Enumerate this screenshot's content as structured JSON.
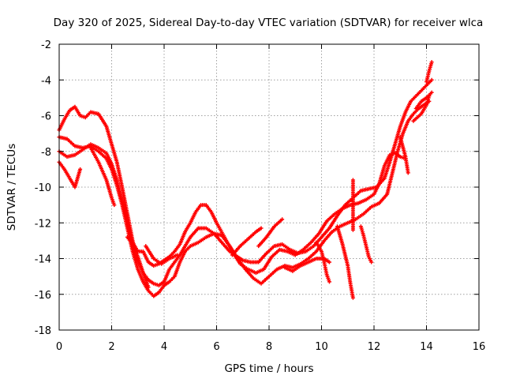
{
  "chart_data": {
    "type": "scatter",
    "title": "Day 320 of 2025, Sidereal Day-to-day VTEC variation (SDTVAR) for receiver wlca",
    "xlabel": "GPS time / hours",
    "ylabel": "SDTVAR / TECUs",
    "xlim": [
      0,
      16
    ],
    "ylim": [
      -18,
      -2
    ],
    "xticks": [
      0,
      2,
      4,
      6,
      8,
      10,
      12,
      14,
      16
    ],
    "yticks": [
      -18,
      -16,
      -14,
      -12,
      -10,
      -8,
      -6,
      -4,
      -2
    ],
    "grid": true,
    "marker": "plus",
    "color": "#ff0000",
    "series": [
      {
        "points": [
          [
            0.0,
            -6.8
          ],
          [
            0.2,
            -6.2
          ],
          [
            0.4,
            -5.7
          ],
          [
            0.6,
            -5.5
          ],
          [
            0.8,
            -6.0
          ],
          [
            1.0,
            -6.1
          ],
          [
            1.2,
            -5.8
          ],
          [
            1.5,
            -5.9
          ],
          [
            1.8,
            -6.6
          ],
          [
            2.0,
            -7.6
          ],
          [
            2.2,
            -8.6
          ],
          [
            2.4,
            -10.0
          ],
          [
            2.6,
            -11.5
          ],
          [
            2.8,
            -13.0
          ],
          [
            3.0,
            -14.1
          ],
          [
            3.2,
            -14.8
          ],
          [
            3.4,
            -15.2
          ],
          [
            3.6,
            -15.4
          ],
          [
            3.8,
            -15.5
          ],
          [
            4.0,
            -15.3
          ],
          [
            4.2,
            -14.6
          ],
          [
            4.4,
            -14.2
          ],
          [
            4.6,
            -13.8
          ],
          [
            4.8,
            -13.3
          ],
          [
            5.0,
            -12.8
          ],
          [
            5.3,
            -12.3
          ],
          [
            5.6,
            -12.3
          ],
          [
            5.9,
            -12.6
          ],
          [
            6.2,
            -13.1
          ],
          [
            6.5,
            -13.6
          ],
          [
            6.8,
            -13.9
          ],
          [
            7.0,
            -14.1
          ],
          [
            7.3,
            -14.2
          ],
          [
            7.6,
            -14.2
          ],
          [
            7.9,
            -13.7
          ],
          [
            8.2,
            -13.3
          ],
          [
            8.5,
            -13.2
          ],
          [
            8.8,
            -13.5
          ],
          [
            9.1,
            -13.7
          ],
          [
            9.4,
            -13.6
          ],
          [
            9.7,
            -13.3
          ],
          [
            10.0,
            -12.8
          ],
          [
            10.3,
            -12.3
          ],
          [
            10.6,
            -11.6
          ],
          [
            10.9,
            -11.0
          ],
          [
            11.2,
            -10.6
          ],
          [
            11.5,
            -10.2
          ],
          [
            11.8,
            -10.1
          ],
          [
            12.1,
            -10.0
          ],
          [
            12.4,
            -9.5
          ],
          [
            12.6,
            -8.6
          ],
          [
            12.8,
            -7.6
          ],
          [
            13.0,
            -6.6
          ],
          [
            13.2,
            -5.8
          ],
          [
            13.4,
            -5.2
          ],
          [
            13.6,
            -4.9
          ],
          [
            13.8,
            -4.6
          ],
          [
            14.0,
            -4.3
          ],
          [
            14.2,
            -4.0
          ]
        ]
      },
      {
        "points": [
          [
            0.0,
            -7.2
          ],
          [
            0.3,
            -7.3
          ],
          [
            0.6,
            -7.7
          ],
          [
            0.9,
            -7.8
          ],
          [
            1.2,
            -7.7
          ],
          [
            1.5,
            -8.0
          ],
          [
            1.8,
            -8.4
          ],
          [
            2.0,
            -9.0
          ],
          [
            2.2,
            -9.9
          ],
          [
            2.4,
            -11.0
          ],
          [
            2.6,
            -12.3
          ],
          [
            2.8,
            -13.6
          ],
          [
            3.0,
            -14.6
          ],
          [
            3.2,
            -15.3
          ],
          [
            3.4,
            -15.8
          ],
          [
            3.6,
            -16.1
          ],
          [
            3.8,
            -15.9
          ],
          [
            4.0,
            -15.5
          ],
          [
            4.2,
            -15.3
          ],
          [
            4.4,
            -15.0
          ],
          [
            4.6,
            -14.2
          ],
          [
            4.8,
            -13.6
          ],
          [
            5.0,
            -13.3
          ],
          [
            5.3,
            -13.1
          ],
          [
            5.6,
            -12.8
          ],
          [
            5.9,
            -12.6
          ],
          [
            6.2,
            -12.7
          ],
          [
            6.5,
            -13.3
          ],
          [
            6.8,
            -14.0
          ],
          [
            7.1,
            -14.6
          ],
          [
            7.4,
            -15.1
          ],
          [
            7.7,
            -15.4
          ],
          [
            8.0,
            -15.0
          ],
          [
            8.3,
            -14.6
          ],
          [
            8.6,
            -14.4
          ],
          [
            8.9,
            -14.5
          ],
          [
            9.2,
            -14.3
          ],
          [
            9.5,
            -14.0
          ],
          [
            9.8,
            -13.6
          ],
          [
            10.1,
            -13.0
          ],
          [
            10.4,
            -12.5
          ],
          [
            10.7,
            -12.2
          ],
          [
            11.0,
            -12.0
          ],
          [
            11.3,
            -11.8
          ],
          [
            11.6,
            -11.5
          ],
          [
            11.9,
            -11.1
          ],
          [
            12.2,
            -10.9
          ],
          [
            12.5,
            -10.4
          ],
          [
            12.7,
            -9.2
          ],
          [
            12.9,
            -8.0
          ],
          [
            13.1,
            -7.0
          ],
          [
            13.3,
            -6.3
          ],
          [
            13.5,
            -5.9
          ],
          [
            13.7,
            -5.6
          ],
          [
            13.9,
            -5.4
          ],
          [
            14.1,
            -5.2
          ]
        ]
      },
      {
        "points": [
          [
            0.0,
            -8.0
          ],
          [
            0.3,
            -8.3
          ],
          [
            0.6,
            -8.2
          ],
          [
            0.9,
            -7.9
          ],
          [
            1.2,
            -7.6
          ],
          [
            1.5,
            -7.8
          ],
          [
            1.8,
            -8.1
          ],
          [
            2.0,
            -8.7
          ],
          [
            2.2,
            -9.6
          ],
          [
            2.4,
            -10.8
          ],
          [
            2.6,
            -12.0
          ],
          [
            2.8,
            -13.1
          ],
          [
            3.0,
            -13.6
          ],
          [
            3.2,
            -13.6
          ],
          [
            3.4,
            -14.2
          ],
          [
            3.6,
            -14.4
          ],
          [
            3.8,
            -14.3
          ],
          [
            4.0,
            -14.1
          ],
          [
            4.2,
            -13.9
          ],
          [
            4.4,
            -13.6
          ],
          [
            4.6,
            -13.2
          ],
          [
            4.8,
            -12.5
          ],
          [
            5.0,
            -12.0
          ],
          [
            5.2,
            -11.4
          ],
          [
            5.4,
            -11.0
          ],
          [
            5.6,
            -11.0
          ],
          [
            5.8,
            -11.4
          ],
          [
            6.0,
            -12.0
          ],
          [
            6.3,
            -12.8
          ],
          [
            6.6,
            -13.6
          ],
          [
            6.9,
            -14.3
          ],
          [
            7.2,
            -14.6
          ],
          [
            7.5,
            -14.8
          ],
          [
            7.8,
            -14.6
          ],
          [
            8.1,
            -13.9
          ],
          [
            8.4,
            -13.5
          ],
          [
            8.7,
            -13.6
          ],
          [
            9.0,
            -13.8
          ],
          [
            9.3,
            -13.5
          ],
          [
            9.6,
            -13.1
          ],
          [
            9.9,
            -12.6
          ],
          [
            10.2,
            -11.9
          ],
          [
            10.5,
            -11.5
          ],
          [
            10.8,
            -11.2
          ],
          [
            11.1,
            -11.0
          ],
          [
            11.4,
            -10.9
          ],
          [
            11.7,
            -10.7
          ],
          [
            12.0,
            -10.4
          ],
          [
            12.2,
            -9.8
          ],
          [
            12.4,
            -8.8
          ],
          [
            12.6,
            -8.2
          ],
          [
            12.8,
            -8.1
          ],
          [
            13.0,
            -8.3
          ],
          [
            13.2,
            -8.4
          ]
        ]
      },
      {
        "points": [
          [
            0.0,
            -8.6
          ],
          [
            0.2,
            -9.0
          ],
          [
            0.4,
            -9.5
          ],
          [
            0.6,
            -10.0
          ],
          [
            0.8,
            -9.0
          ]
        ]
      },
      {
        "points": [
          [
            1.2,
            -7.8
          ],
          [
            1.5,
            -8.6
          ],
          [
            1.8,
            -9.6
          ],
          [
            2.0,
            -10.6
          ],
          [
            2.1,
            -11.0
          ]
        ]
      },
      {
        "points": [
          [
            2.6,
            -12.8
          ],
          [
            2.8,
            -13.2
          ],
          [
            3.0,
            -13.9
          ],
          [
            3.2,
            -14.8
          ],
          [
            3.4,
            -15.6
          ]
        ]
      },
      {
        "points": [
          [
            3.3,
            -13.3
          ],
          [
            3.6,
            -14.0
          ],
          [
            3.9,
            -14.3
          ],
          [
            4.2,
            -14.0
          ],
          [
            4.5,
            -13.8
          ]
        ]
      },
      {
        "points": [
          [
            6.6,
            -13.8
          ],
          [
            6.9,
            -13.3
          ],
          [
            7.2,
            -12.9
          ],
          [
            7.5,
            -12.5
          ],
          [
            7.7,
            -12.3
          ]
        ]
      },
      {
        "points": [
          [
            7.6,
            -13.3
          ],
          [
            7.9,
            -12.8
          ],
          [
            8.2,
            -12.2
          ],
          [
            8.5,
            -11.8
          ]
        ]
      },
      {
        "points": [
          [
            8.6,
            -14.5
          ],
          [
            8.9,
            -14.7
          ],
          [
            9.2,
            -14.4
          ],
          [
            9.5,
            -14.2
          ],
          [
            9.8,
            -14.0
          ],
          [
            10.1,
            -14.0
          ],
          [
            10.3,
            -14.2
          ]
        ]
      },
      {
        "points": [
          [
            9.8,
            -13.1
          ],
          [
            10.0,
            -13.6
          ],
          [
            10.1,
            -14.2
          ],
          [
            10.2,
            -14.9
          ],
          [
            10.3,
            -15.3
          ]
        ]
      },
      {
        "points": [
          [
            10.6,
            -12.2
          ],
          [
            10.8,
            -13.2
          ],
          [
            11.0,
            -14.4
          ],
          [
            11.1,
            -15.4
          ],
          [
            11.2,
            -16.2
          ]
        ]
      },
      {
        "points": [
          [
            11.2,
            -9.6
          ],
          [
            11.2,
            -10.6
          ],
          [
            11.2,
            -11.6
          ],
          [
            11.2,
            -12.4
          ]
        ]
      },
      {
        "points": [
          [
            11.5,
            -12.2
          ],
          [
            11.6,
            -12.7
          ],
          [
            11.7,
            -13.3
          ],
          [
            11.8,
            -13.9
          ],
          [
            11.9,
            -14.2
          ]
        ]
      },
      {
        "points": [
          [
            13.0,
            -7.2
          ],
          [
            13.2,
            -8.3
          ],
          [
            13.3,
            -9.2
          ]
        ]
      },
      {
        "points": [
          [
            13.5,
            -6.3
          ],
          [
            13.8,
            -5.9
          ],
          [
            14.0,
            -5.4
          ],
          [
            14.1,
            -4.9
          ]
        ]
      },
      {
        "points": [
          [
            13.6,
            -5.6
          ],
          [
            13.8,
            -5.2
          ],
          [
            14.0,
            -5.0
          ],
          [
            14.2,
            -4.7
          ]
        ]
      },
      {
        "points": [
          [
            14.0,
            -4.1
          ],
          [
            14.1,
            -3.5
          ],
          [
            14.2,
            -3.0
          ]
        ]
      }
    ]
  }
}
